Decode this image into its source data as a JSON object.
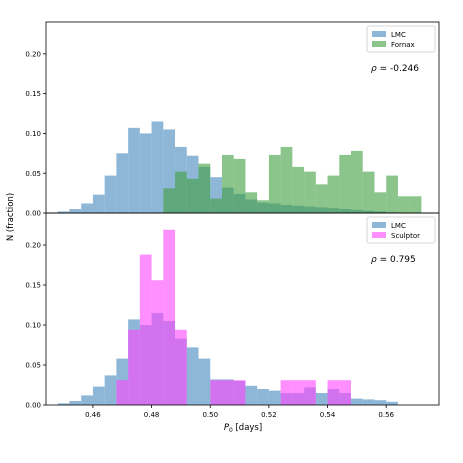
{
  "figure": {
    "ylabel": "N (fraction)",
    "xlabel_base": "P",
    "xlabel_sub": "0",
    "xlabel_unit": " [days]",
    "xlim": [
      0.444,
      0.578
    ],
    "xticks": [
      0.46,
      0.48,
      0.5,
      0.52,
      0.54,
      0.56
    ],
    "xtick_labels": [
      "0.46",
      "0.48",
      "0.50",
      "0.52",
      "0.54",
      "0.56"
    ]
  },
  "colors": {
    "lmc": "#7aaad0",
    "fornax": "#3d9e3d",
    "sculptor": "#ff44ff"
  },
  "chart_data": [
    {
      "type": "bar",
      "panel": "top",
      "bin_width": 0.004,
      "ylim": [
        0,
        0.24
      ],
      "yticks": [
        0.0,
        0.05,
        0.1,
        0.15,
        0.2
      ],
      "ytick_labels": [
        "0.00",
        "0.05",
        "0.10",
        "0.15",
        "0.20"
      ],
      "legend": {
        "position": "top-right",
        "entries": [
          "LMC",
          "Fornax"
        ]
      },
      "annotation": {
        "symbol": "ρ",
        "text": " = -0.246"
      },
      "series": [
        {
          "name": "LMC",
          "color_key": "lmc",
          "bins": [
            [
              0.448,
              0.002
            ],
            [
              0.452,
              0.005
            ],
            [
              0.456,
              0.012
            ],
            [
              0.46,
              0.023
            ],
            [
              0.464,
              0.047
            ],
            [
              0.468,
              0.075
            ],
            [
              0.472,
              0.107
            ],
            [
              0.476,
              0.1
            ],
            [
              0.48,
              0.115
            ],
            [
              0.484,
              0.105
            ],
            [
              0.488,
              0.083
            ],
            [
              0.492,
              0.072
            ],
            [
              0.496,
              0.058
            ],
            [
              0.5,
              0.045
            ],
            [
              0.504,
              0.032
            ],
            [
              0.508,
              0.024
            ],
            [
              0.512,
              0.017
            ],
            [
              0.516,
              0.013
            ],
            [
              0.52,
              0.012
            ],
            [
              0.524,
              0.01
            ],
            [
              0.528,
              0.009
            ],
            [
              0.532,
              0.008
            ],
            [
              0.536,
              0.007
            ],
            [
              0.54,
              0.006
            ],
            [
              0.544,
              0.005
            ],
            [
              0.548,
              0.004
            ],
            [
              0.552,
              0.003
            ],
            [
              0.556,
              0.002
            ],
            [
              0.56,
              0.001
            ]
          ]
        },
        {
          "name": "Fornax",
          "color_key": "fornax",
          "bins": [
            [
              0.484,
              0.031
            ],
            [
              0.488,
              0.052
            ],
            [
              0.492,
              0.043
            ],
            [
              0.496,
              0.062
            ],
            [
              0.5,
              0.018
            ],
            [
              0.504,
              0.073
            ],
            [
              0.508,
              0.068
            ],
            [
              0.512,
              0.026
            ],
            [
              0.516,
              0.016
            ],
            [
              0.52,
              0.073
            ],
            [
              0.524,
              0.083
            ],
            [
              0.528,
              0.058
            ],
            [
              0.532,
              0.052
            ],
            [
              0.536,
              0.036
            ],
            [
              0.54,
              0.047
            ],
            [
              0.544,
              0.073
            ],
            [
              0.548,
              0.078
            ],
            [
              0.552,
              0.052
            ],
            [
              0.556,
              0.026
            ],
            [
              0.56,
              0.047
            ],
            [
              0.564,
              0.021
            ],
            [
              0.568,
              0.021
            ]
          ]
        }
      ]
    },
    {
      "type": "bar",
      "panel": "bottom",
      "bin_width": 0.004,
      "ylim": [
        0,
        0.24
      ],
      "yticks": [
        0.0,
        0.05,
        0.1,
        0.15,
        0.2
      ],
      "ytick_labels": [
        "0.00",
        "0.05",
        "0.10",
        "0.15",
        "0.20"
      ],
      "legend": {
        "position": "top-right",
        "entries": [
          "LMC",
          "Sculptor"
        ]
      },
      "annotation": {
        "symbol": "ρ",
        "text": " = 0.795"
      },
      "series": [
        {
          "name": "LMC",
          "color_key": "lmc",
          "bins": [
            [
              0.448,
              0.002
            ],
            [
              0.452,
              0.005
            ],
            [
              0.456,
              0.012
            ],
            [
              0.46,
              0.023
            ],
            [
              0.464,
              0.037
            ],
            [
              0.468,
              0.058
            ],
            [
              0.472,
              0.107
            ],
            [
              0.476,
              0.1
            ],
            [
              0.48,
              0.115
            ],
            [
              0.484,
              0.105
            ],
            [
              0.488,
              0.083
            ],
            [
              0.492,
              0.072
            ],
            [
              0.496,
              0.058
            ],
            [
              0.5,
              0.032
            ],
            [
              0.504,
              0.032
            ],
            [
              0.508,
              0.03
            ],
            [
              0.512,
              0.024
            ],
            [
              0.516,
              0.02
            ],
            [
              0.52,
              0.018
            ],
            [
              0.524,
              0.015
            ],
            [
              0.528,
              0.015
            ],
            [
              0.532,
              0.022
            ],
            [
              0.536,
              0.015
            ],
            [
              0.54,
              0.02
            ],
            [
              0.544,
              0.015
            ],
            [
              0.548,
              0.008
            ],
            [
              0.552,
              0.007
            ],
            [
              0.556,
              0.006
            ],
            [
              0.56,
              0.004
            ]
          ]
        },
        {
          "name": "Sculptor",
          "color_key": "sculptor",
          "bins": [
            [
              0.468,
              0.031
            ],
            [
              0.472,
              0.094
            ],
            [
              0.476,
              0.188
            ],
            [
              0.48,
              0.156
            ],
            [
              0.484,
              0.219
            ],
            [
              0.488,
              0.094
            ],
            [
              0.5,
              0.031
            ],
            [
              0.504,
              0.031
            ],
            [
              0.508,
              0.031
            ],
            [
              0.524,
              0.031
            ],
            [
              0.528,
              0.031
            ],
            [
              0.532,
              0.031
            ],
            [
              0.54,
              0.031
            ],
            [
              0.544,
              0.031
            ]
          ]
        }
      ]
    }
  ]
}
